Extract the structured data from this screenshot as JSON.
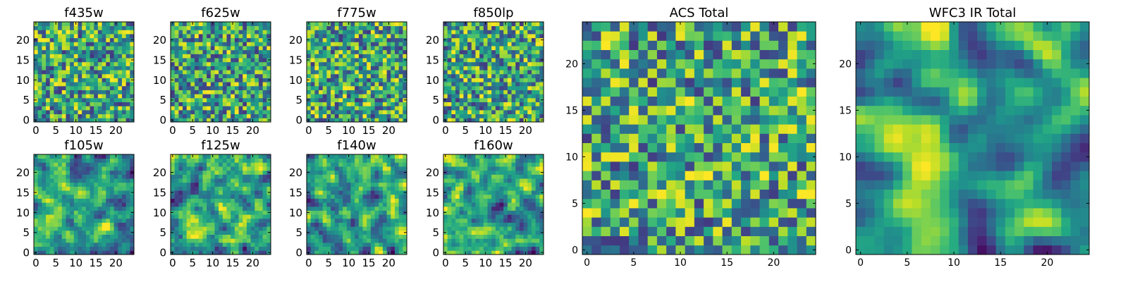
{
  "chart_data": [
    {
      "type": "heatmap",
      "title": "f435w",
      "shape": [
        25,
        25
      ],
      "colormap": "viridis",
      "xlim": [
        0,
        24
      ],
      "ylim": [
        0,
        24
      ],
      "xticks": [
        "0",
        "5",
        "10",
        "15",
        "20"
      ],
      "yticks": [
        "0",
        "5",
        "10",
        "15",
        "20"
      ],
      "seed": 11
    },
    {
      "type": "heatmap",
      "title": "f625w",
      "shape": [
        25,
        25
      ],
      "colormap": "viridis",
      "xlim": [
        0,
        24
      ],
      "ylim": [
        0,
        24
      ],
      "xticks": [
        "0",
        "5",
        "10",
        "15",
        "20"
      ],
      "yticks": [
        "0",
        "5",
        "10",
        "15",
        "20"
      ],
      "seed": 23
    },
    {
      "type": "heatmap",
      "title": "f775w",
      "shape": [
        25,
        25
      ],
      "colormap": "viridis",
      "xlim": [
        0,
        24
      ],
      "ylim": [
        0,
        24
      ],
      "xticks": [
        "0",
        "5",
        "10",
        "15",
        "20"
      ],
      "yticks": [
        "0",
        "5",
        "10",
        "15",
        "20"
      ],
      "seed": 37
    },
    {
      "type": "heatmap",
      "title": "f850lp",
      "shape": [
        25,
        25
      ],
      "colormap": "viridis",
      "xlim": [
        0,
        24
      ],
      "ylim": [
        0,
        24
      ],
      "xticks": [
        "0",
        "5",
        "10",
        "15",
        "20"
      ],
      "yticks": [
        "0",
        "5",
        "10",
        "15",
        "20"
      ],
      "seed": 41
    },
    {
      "type": "heatmap",
      "title": "f105w",
      "shape": [
        25,
        25
      ],
      "colormap": "viridis",
      "xlim": [
        0,
        24
      ],
      "ylim": [
        0,
        24
      ],
      "xticks": [
        "0",
        "5",
        "10",
        "15",
        "20"
      ],
      "yticks": [
        "0",
        "5",
        "10",
        "15",
        "20"
      ],
      "seed": 53
    },
    {
      "type": "heatmap",
      "title": "f125w",
      "shape": [
        25,
        25
      ],
      "colormap": "viridis",
      "xlim": [
        0,
        24
      ],
      "ylim": [
        0,
        24
      ],
      "xticks": [
        "0",
        "5",
        "10",
        "15",
        "20"
      ],
      "yticks": [
        "0",
        "5",
        "10",
        "15",
        "20"
      ],
      "seed": 67
    },
    {
      "type": "heatmap",
      "title": "f140w",
      "shape": [
        25,
        25
      ],
      "colormap": "viridis",
      "xlim": [
        0,
        24
      ],
      "ylim": [
        0,
        24
      ],
      "xticks": [
        "0",
        "5",
        "10",
        "15",
        "20"
      ],
      "yticks": [
        "0",
        "5",
        "10",
        "15",
        "20"
      ],
      "seed": 79
    },
    {
      "type": "heatmap",
      "title": "f160w",
      "shape": [
        25,
        25
      ],
      "colormap": "viridis",
      "xlim": [
        0,
        24
      ],
      "ylim": [
        0,
        24
      ],
      "xticks": [
        "0",
        "5",
        "10",
        "15",
        "20"
      ],
      "yticks": [
        "0",
        "5",
        "10",
        "15",
        "20"
      ],
      "seed": 83
    },
    {
      "type": "heatmap",
      "title": "ACS Total",
      "shape": [
        25,
        25
      ],
      "colormap": "viridis",
      "xlim": [
        0,
        24
      ],
      "ylim": [
        0,
        24
      ],
      "xticks": [
        "0",
        "5",
        "10",
        "15",
        "20"
      ],
      "yticks": [
        "0",
        "5",
        "10",
        "15",
        "20"
      ],
      "seed": 97
    },
    {
      "type": "heatmap",
      "title": "WFC3 IR Total",
      "shape": [
        25,
        25
      ],
      "colormap": "viridis",
      "xlim": [
        0,
        24
      ],
      "ylim": [
        0,
        24
      ],
      "xticks": [
        "0",
        "5",
        "10",
        "15",
        "20"
      ],
      "yticks": [
        "0",
        "5",
        "10",
        "15",
        "20"
      ],
      "seed": 101
    }
  ]
}
